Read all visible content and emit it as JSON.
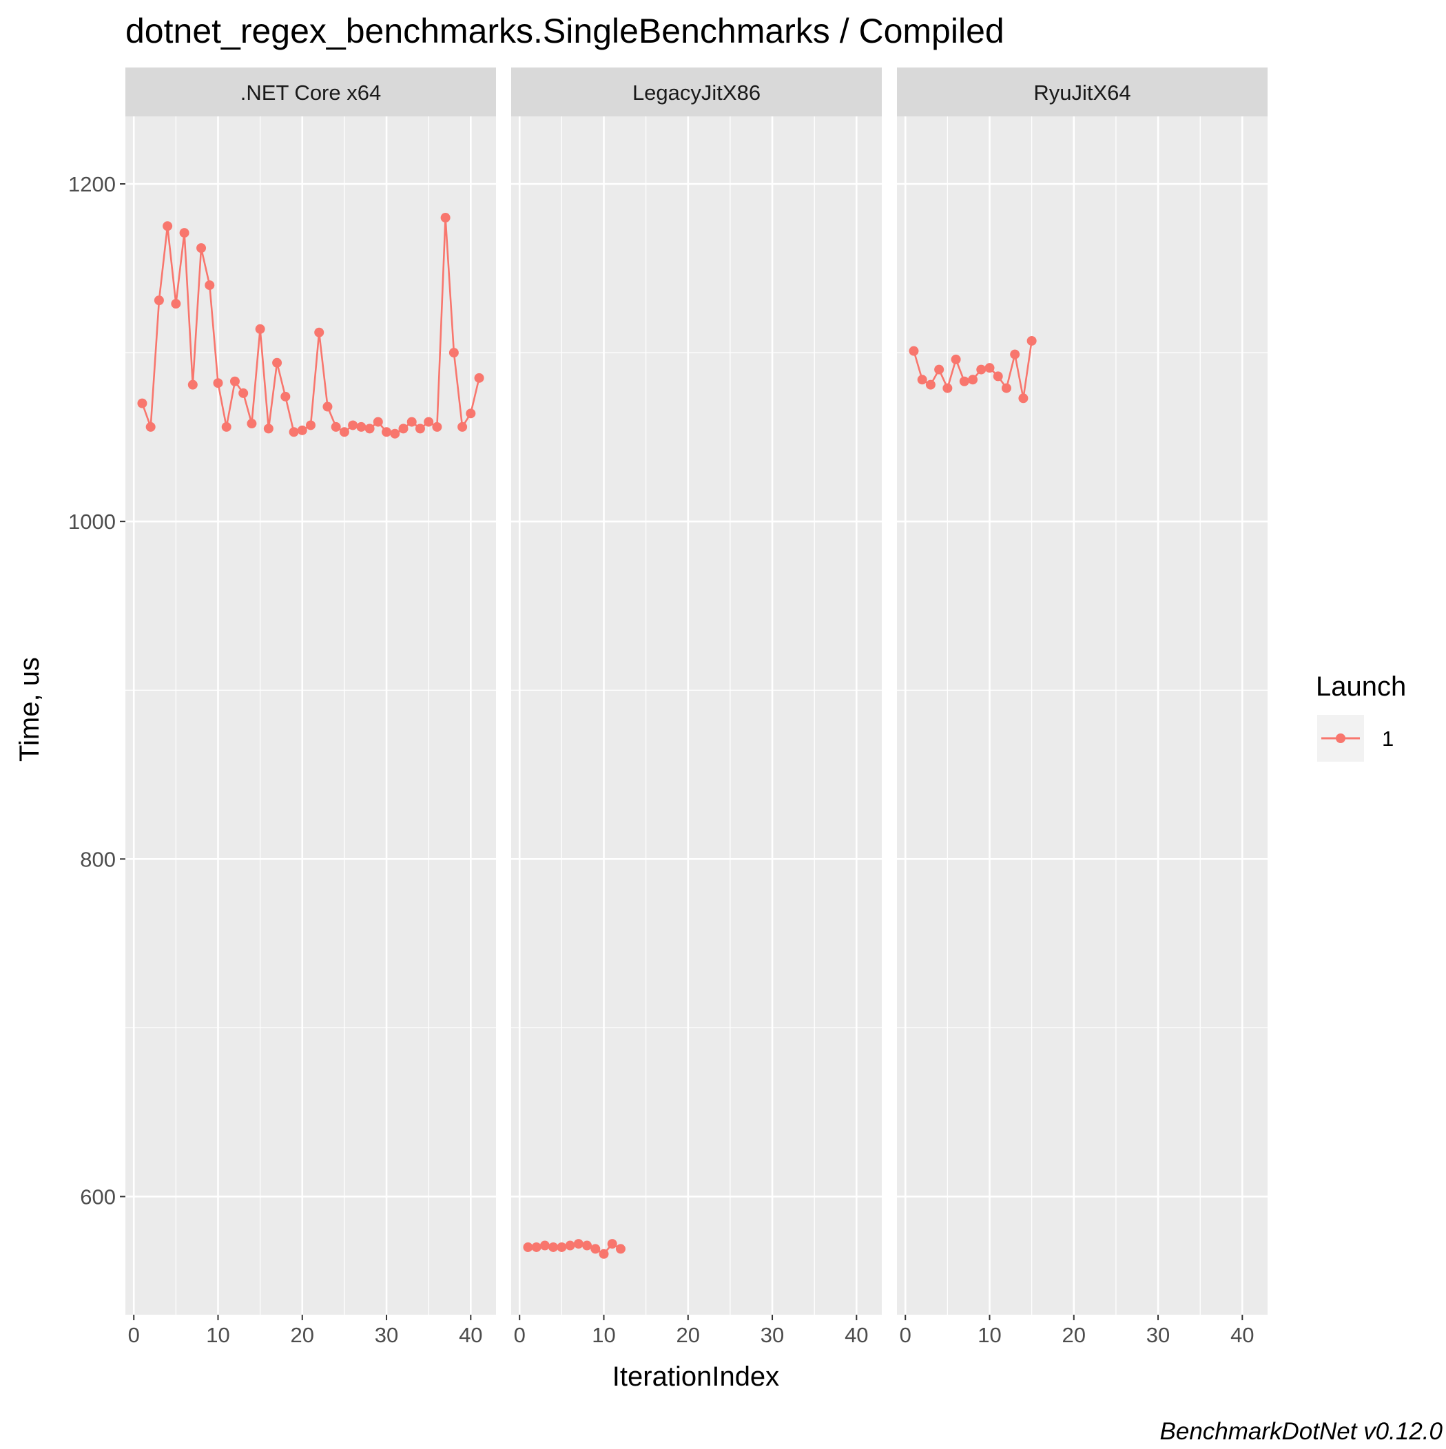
{
  "chart_data": {
    "type": "line",
    "title": "dotnet_regex_benchmarks.SingleBenchmarks / Compiled",
    "xlabel": "IterationIndex",
    "ylabel": "Time, us",
    "caption": "BenchmarkDotNet v0.12.0",
    "xlim": [
      -1,
      43
    ],
    "ylim": [
      530,
      1240
    ],
    "x_ticks": [
      0,
      10,
      20,
      30,
      40
    ],
    "y_ticks": [
      600,
      800,
      1000,
      1200
    ],
    "grid": true,
    "legend": {
      "title": "Launch",
      "position": "right",
      "entries": [
        {
          "label": "1",
          "color": "#F8766D"
        }
      ]
    },
    "series_color": "#F8766D",
    "panels": [
      {
        "label": ".NET Core x64",
        "series": [
          {
            "name": "1",
            "x": [
              1,
              2,
              3,
              4,
              5,
              6,
              7,
              8,
              9,
              10,
              11,
              12,
              13,
              14,
              15,
              16,
              17,
              18,
              19,
              20,
              21,
              22,
              23,
              24,
              25,
              26,
              27,
              28,
              29,
              30,
              31,
              32,
              33,
              34,
              35,
              36,
              37,
              38,
              39,
              40,
              41
            ],
            "y": [
              1070,
              1056,
              1131,
              1175,
              1129,
              1171,
              1081,
              1162,
              1140,
              1082,
              1056,
              1083,
              1076,
              1058,
              1114,
              1055,
              1094,
              1074,
              1053,
              1054,
              1057,
              1112,
              1068,
              1056,
              1053,
              1057,
              1056,
              1055,
              1059,
              1053,
              1052,
              1055,
              1059,
              1055,
              1059,
              1056,
              1180,
              1100,
              1056,
              1064,
              1085
            ]
          }
        ]
      },
      {
        "label": "LegacyJitX86",
        "series": [
          {
            "name": "1",
            "x": [
              1,
              2,
              3,
              4,
              5,
              6,
              7,
              8,
              9,
              10,
              11,
              12
            ],
            "y": [
              570,
              570,
              571,
              570,
              570,
              571,
              572,
              571,
              569,
              566,
              572,
              569
            ]
          }
        ]
      },
      {
        "label": "RyuJitX64",
        "series": [
          {
            "name": "1",
            "x": [
              1,
              2,
              3,
              4,
              5,
              6,
              7,
              8,
              9,
              10,
              11,
              12,
              13,
              14,
              15
            ],
            "y": [
              1101,
              1084,
              1081,
              1090,
              1079,
              1096,
              1083,
              1084,
              1090,
              1091,
              1086,
              1079,
              1099,
              1073,
              1107
            ]
          }
        ]
      }
    ]
  }
}
